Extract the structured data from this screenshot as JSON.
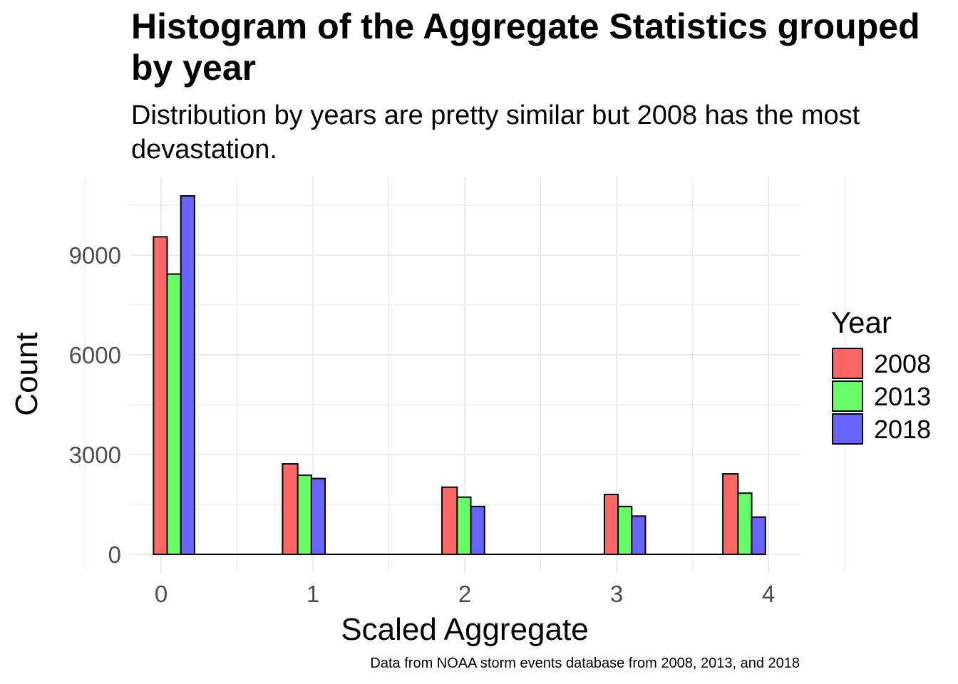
{
  "title": "Histogram of the Aggregate Statistics grouped by year",
  "subtitle": "Distribution by years are pretty similar but 2008 has the most devastation.",
  "caption": "Data from NOAA storm events database from 2008, 2013, and 2018",
  "chart_data": {
    "type": "bar",
    "title": "Histogram of the Aggregate Statistics grouped by year",
    "subtitle": "Distribution by years are pretty similar but 2008 has the most devastation.",
    "xlabel": "Scaled Aggregate",
    "ylabel": "Count",
    "x_ticks": [
      "0",
      "1",
      "2",
      "3",
      "4"
    ],
    "y_ticks": [
      "0",
      "3000",
      "6000",
      "9000"
    ],
    "xlim": [
      -0.5,
      4.5
    ],
    "ylim": [
      0,
      10800
    ],
    "grid": true,
    "legend": {
      "title": "Year",
      "position": "right"
    },
    "bins": [
      {
        "x_start": -0.2,
        "x_end": 0.0,
        "x_tick": "0"
      },
      {
        "x_start": 0.0,
        "x_end": 0.1,
        "x_tick": "0"
      },
      {
        "x_start": 0.1,
        "x_end": 0.2,
        "x_tick": "0"
      },
      {
        "x_start": 0.8,
        "x_end": 0.9,
        "x_tick": "1"
      },
      {
        "x_start": 0.9,
        "x_end": 1.0,
        "x_tick": "1"
      },
      {
        "x_start": 1.0,
        "x_end": 1.1,
        "x_tick": "1"
      },
      {
        "x_start": 1.85,
        "x_end": 1.95,
        "x_tick": "2"
      },
      {
        "x_start": 1.95,
        "x_end": 2.05,
        "x_tick": "2"
      },
      {
        "x_start": 2.05,
        "x_end": 2.15,
        "x_tick": "2"
      },
      {
        "x_start": 2.9,
        "x_end": 3.0,
        "x_tick": "3"
      },
      {
        "x_start": 3.0,
        "x_end": 3.1,
        "x_tick": "3"
      },
      {
        "x_start": 3.1,
        "x_end": 3.2,
        "x_tick": "3"
      },
      {
        "x_start": 3.7,
        "x_end": 3.8,
        "x_tick": "4"
      },
      {
        "x_start": 3.8,
        "x_end": 3.9,
        "x_tick": "4"
      },
      {
        "x_start": 3.9,
        "x_end": 4.0,
        "x_tick": "4"
      }
    ],
    "series": [
      {
        "name": "2008",
        "color": "#FF6666",
        "bars": [
          {
            "x_start": -0.05,
            "x_end": 0.04,
            "value": 9550
          },
          {
            "x_start": 0.8,
            "x_end": 0.9,
            "value": 2720
          },
          {
            "x_start": 1.85,
            "x_end": 1.95,
            "value": 2020
          },
          {
            "x_start": 2.92,
            "x_end": 3.01,
            "value": 1800
          },
          {
            "x_start": 3.7,
            "x_end": 3.8,
            "value": 2420
          }
        ]
      },
      {
        "name": "2013",
        "color": "#66FF66",
        "bars": [
          {
            "x_start": 0.04,
            "x_end": 0.13,
            "value": 8430
          },
          {
            "x_start": 0.9,
            "x_end": 0.99,
            "value": 2380
          },
          {
            "x_start": 1.95,
            "x_end": 2.04,
            "value": 1720
          },
          {
            "x_start": 3.01,
            "x_end": 3.1,
            "value": 1440
          },
          {
            "x_start": 3.8,
            "x_end": 3.89,
            "value": 1840
          }
        ]
      },
      {
        "name": "2018",
        "color": "#6666FF",
        "bars": [
          {
            "x_start": 0.13,
            "x_end": 0.22,
            "value": 10780
          },
          {
            "x_start": 0.99,
            "x_end": 1.08,
            "value": 2280
          },
          {
            "x_start": 2.04,
            "x_end": 2.13,
            "value": 1440
          },
          {
            "x_start": 3.1,
            "x_end": 3.19,
            "value": 1150
          },
          {
            "x_start": 3.89,
            "x_end": 3.98,
            "value": 1120
          }
        ]
      }
    ]
  }
}
